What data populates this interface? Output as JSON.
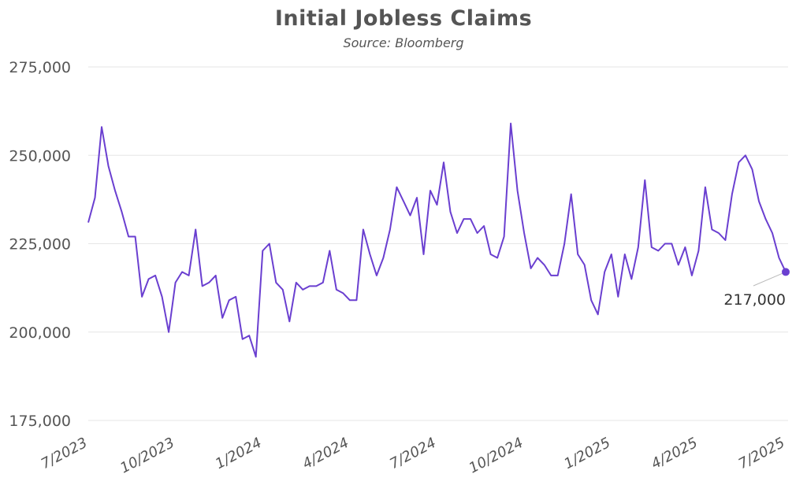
{
  "title": "Initial Jobless Claims",
  "subtitle": "Source: Bloomberg",
  "colors": {
    "line": "#6a3fd0",
    "grid": "#e6e6e6",
    "text": "#555555"
  },
  "chart_data": {
    "type": "line",
    "title": "Initial Jobless Claims",
    "subtitle": "Source: Bloomberg",
    "xlabel": "",
    "ylabel": "",
    "ylim": [
      175000,
      275000
    ],
    "y_ticks": [
      175000,
      200000,
      225000,
      250000,
      275000
    ],
    "y_tick_labels": [
      "175,000",
      "200,000",
      "225,000",
      "250,000",
      "275,000"
    ],
    "x_tick_labels": [
      "7/2023",
      "10/2023",
      "1/2024",
      "4/2024",
      "7/2024",
      "10/2024",
      "1/2025",
      "4/2025",
      "7/2025"
    ],
    "grid": "horizontal",
    "last_value_label": "217,000",
    "series": [
      {
        "values": [
          231000,
          238000,
          258000,
          247000,
          240000,
          234000,
          227000,
          227000,
          210000,
          215000,
          216000,
          210000,
          200000,
          214000,
          217000,
          216000,
          229000,
          213000,
          214000,
          216000,
          204000,
          209000,
          210000,
          198000,
          199000,
          193000,
          223000,
          225000,
          214000,
          212000,
          203000,
          214000,
          212000,
          213000,
          213000,
          214000,
          223000,
          212000,
          211000,
          209000,
          209000,
          229000,
          222000,
          216000,
          221000,
          229000,
          241000,
          237000,
          233000,
          238000,
          222000,
          240000,
          236000,
          248000,
          234000,
          228000,
          232000,
          232000,
          228000,
          230000,
          222000,
          221000,
          227000,
          259000,
          240000,
          228000,
          218000,
          221000,
          219000,
          216000,
          216000,
          225000,
          239000,
          222000,
          219000,
          209000,
          205000,
          217000,
          222000,
          210000,
          222000,
          215000,
          224000,
          243000,
          224000,
          223000,
          225000,
          225000,
          219000,
          224000,
          216000,
          223000,
          241000,
          229000,
          228000,
          226000,
          239000,
          248000,
          250000,
          246000,
          237000,
          232000,
          228000,
          221000,
          217000
        ]
      }
    ]
  }
}
